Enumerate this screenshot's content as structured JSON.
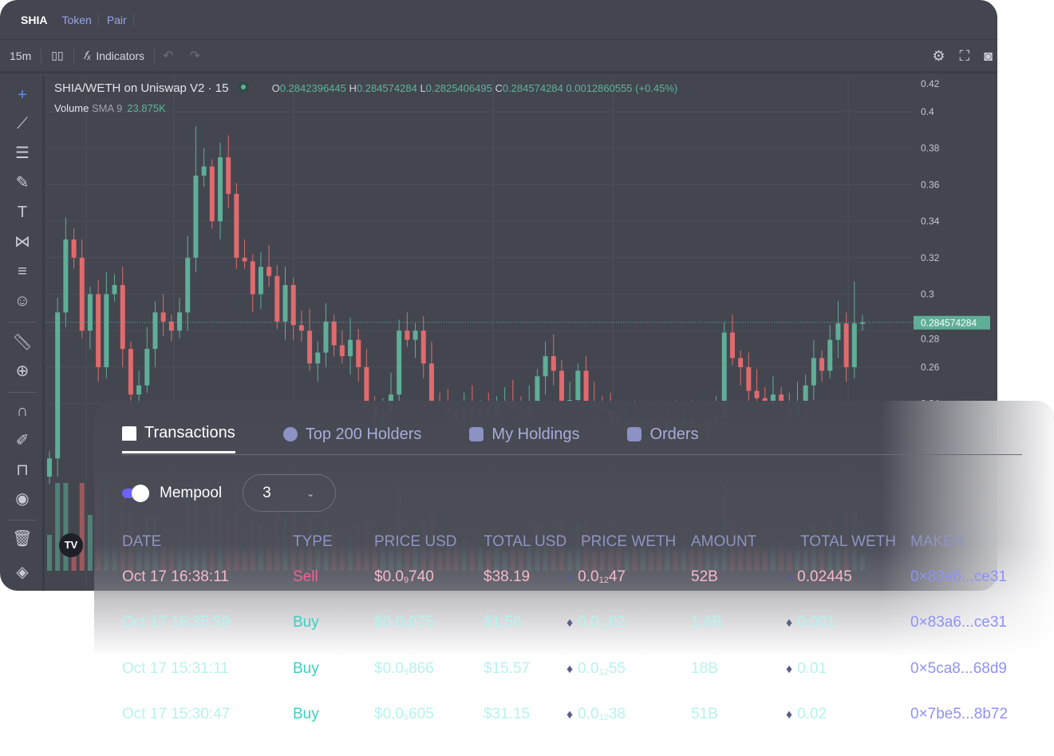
{
  "header": {
    "symbol": "SHIA",
    "links": [
      "Token",
      "Pair"
    ]
  },
  "toolbar": {
    "interval": "15m",
    "candle_icon": "candlestick-icon",
    "indicators": "Indicators",
    "undo": "↶",
    "redo": "↷"
  },
  "legend": {
    "title": "SHIA/WETH on Uniswap V2 · 15",
    "o_label": "O",
    "o": "0.2842396445",
    "h_label": "H",
    "h": "0.284574284",
    "l_label": "L",
    "l": "0.2825406495",
    "c_label": "C",
    "c": "0.284574284",
    "change": "0.0012860555 (+0.45%)",
    "volume_label": "Volume",
    "sma": "SMA 9",
    "volume": "23.875K"
  },
  "chart_data": {
    "type": "candlestick",
    "y_ticks": [
      "0.42",
      "0.4",
      "0.38",
      "0.36",
      "0.34",
      "0.32",
      "0.3",
      "0.28",
      "0.26",
      "0.24"
    ],
    "last_price": "0.284574284",
    "closes": [
      0.21,
      0.29,
      0.33,
      0.32,
      0.28,
      0.3,
      0.26,
      0.3,
      0.305,
      0.27,
      0.245,
      0.25,
      0.27,
      0.29,
      0.285,
      0.28,
      0.29,
      0.32,
      0.365,
      0.37,
      0.34,
      0.375,
      0.355,
      0.32,
      0.318,
      0.3,
      0.315,
      0.31,
      0.285,
      0.305,
      0.283,
      0.28,
      0.262,
      0.268,
      0.285,
      0.272,
      0.266,
      0.275,
      0.26,
      0.24,
      0.23,
      0.235,
      0.245,
      0.28,
      0.275,
      0.28,
      0.262,
      0.24,
      0.238,
      0.235,
      0.23,
      0.238,
      0.232,
      0.236,
      0.234,
      0.24,
      0.241,
      0.238,
      0.235,
      0.24,
      0.255,
      0.266,
      0.258,
      0.24,
      0.242,
      0.258,
      0.24,
      0.238,
      0.236,
      0.232,
      0.228,
      0.23,
      0.226,
      0.231,
      0.229,
      0.225,
      0.23,
      0.228,
      0.232,
      0.229,
      0.226,
      0.23,
      0.232,
      0.279,
      0.265,
      0.26,
      0.247,
      0.243,
      0.24,
      0.245,
      0.238,
      0.235,
      0.24,
      0.25,
      0.265,
      0.258,
      0.275,
      0.284,
      0.26,
      0.284,
      0.2846
    ],
    "high_overrides": {
      "18": 0.392,
      "21": 0.383,
      "99": 0.307
    },
    "colors": {
      "up": "#5fae98",
      "down": "#e06a6d"
    }
  },
  "panel": {
    "tabs": [
      "Transactions",
      "Top 200 Holders",
      "My Holdings",
      "Orders"
    ],
    "mempool": "Mempool",
    "mempool_on": true,
    "count": "3",
    "columns": [
      "DATE",
      "TYPE",
      "PRICE USD",
      "TOTAL USD",
      "PRICE WETH",
      "AMOUNT",
      "TOTAL WETH",
      "MAKER"
    ],
    "rows": [
      {
        "date": "Oct 17 16:38:11",
        "type": "Sell",
        "pu_a": "$0.0",
        "pu_s": "9",
        "pu_b": "740",
        "total": "$38.19",
        "pw_a": "0.0",
        "pw_s": "12",
        "pw_b": "47",
        "amount": "52B",
        "tw": "0.02445",
        "maker": "0×83a6...ce31"
      },
      {
        "date": "Oct 17 16:35:59",
        "type": "Buy",
        "pu_a": "$0.0",
        "pu_s": "9",
        "pu_b": "975",
        "total": "$1.56",
        "pw_a": "0.0",
        "pw_s": "12",
        "pw_b": "62",
        "amount": "1.6B",
        "tw": "0.001",
        "maker": "0×83a6...ce31"
      },
      {
        "date": "Oct 17 15:31:11",
        "type": "Buy",
        "pu_a": "$0.0",
        "pu_s": "9",
        "pu_b": "866",
        "total": "$15.57",
        "pw_a": "0.0",
        "pw_s": "12",
        "pw_b": "55",
        "amount": "18B",
        "tw": "0.01",
        "maker": "0×5ca8...68d9"
      },
      {
        "date": "Oct 17 15:30:47",
        "type": "Buy",
        "pu_a": "$0.0",
        "pu_s": "9",
        "pu_b": "605",
        "total": "$31.15",
        "pw_a": "0.0",
        "pw_s": "12",
        "pw_b": "38",
        "amount": "51B",
        "tw": "0.02",
        "maker": "0×7be5...8b72"
      }
    ],
    "colors": {
      "sell": "#f06292",
      "buy": "#3ccfc0",
      "sell_text": "#f6b9c9",
      "buy_text": "#b6f3ee",
      "maker": "#8f92f5"
    }
  }
}
